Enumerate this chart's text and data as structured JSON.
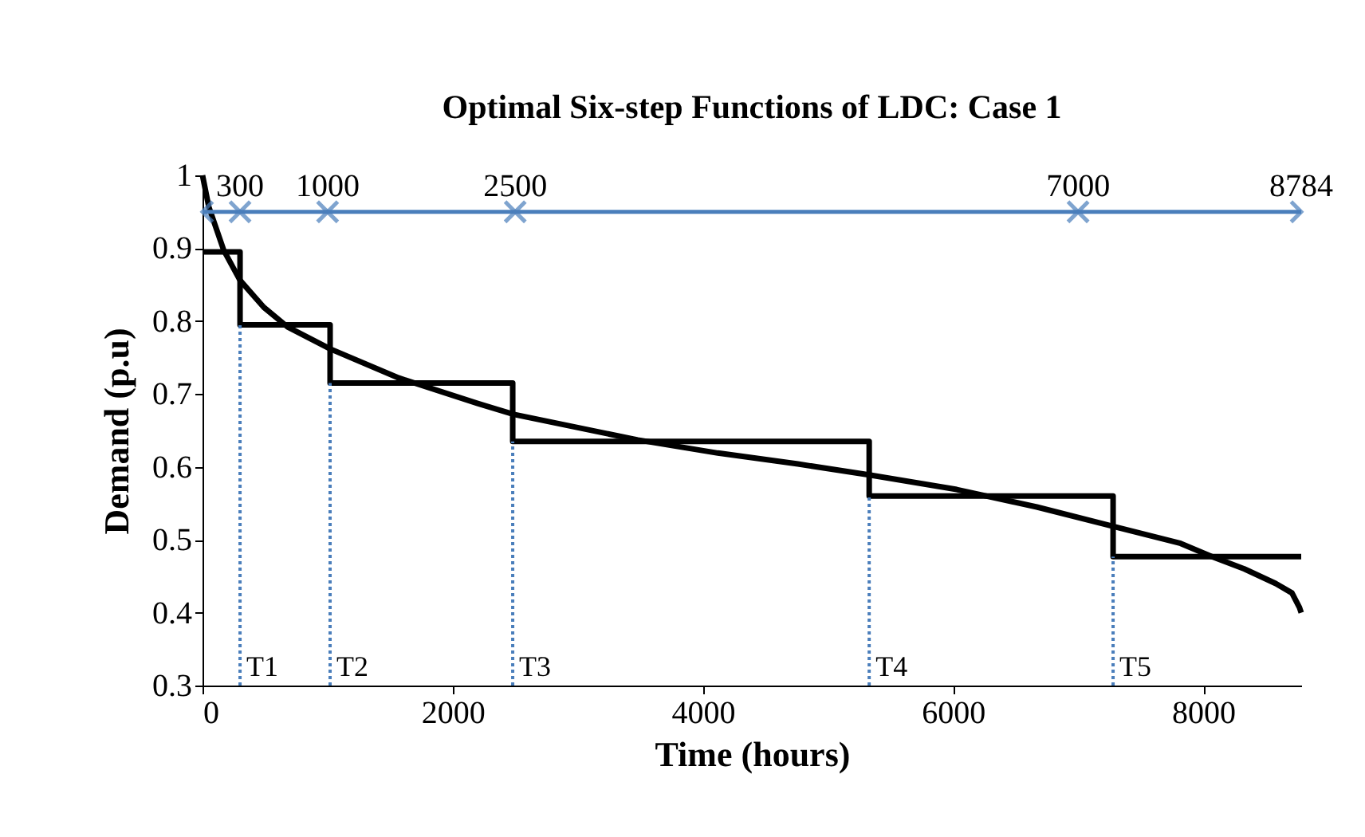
{
  "chart_data": {
    "type": "step",
    "title": "Optimal Six-step Functions of LDC: Case 1",
    "xlabel": "Time (hours)",
    "ylabel": "Demand (p.u)",
    "xlim": [
      0,
      8784
    ],
    "xticks": [
      0,
      2000,
      4000,
      6000,
      8000
    ],
    "ylim": [
      0.3,
      1
    ],
    "yticks": [
      0.3,
      0.4,
      0.5,
      0.6,
      0.7,
      0.8,
      0.9,
      1
    ],
    "grid": false,
    "series": [
      {
        "color": "#000000",
        "x": [
          0,
          300,
          1020,
          2480,
          5330,
          7280,
          8784
        ],
        "values": [
          0.895,
          0.795,
          0.715,
          0.635,
          0.56,
          0.477,
          0.477
        ]
      },
      {
        "type": "line",
        "color": "#000000",
        "x": [
          0,
          50,
          170,
          300,
          490,
          680,
          1020,
          1570,
          2200,
          2490,
          3480,
          4120,
          4760,
          5330,
          6030,
          6670,
          7270,
          7820,
          8070,
          8330,
          8580,
          8710,
          8770,
          8784
        ],
        "values": [
          1.0,
          0.957,
          0.897,
          0.856,
          0.819,
          0.792,
          0.762,
          0.722,
          0.687,
          0.672,
          0.637,
          0.619,
          0.604,
          0.589,
          0.569,
          0.545,
          0.519,
          0.495,
          0.477,
          0.46,
          0.44,
          0.427,
          0.407,
          0.4
        ]
      },
      {
        "type": "line",
        "color": "#4a7ebb",
        "marker": "cross",
        "x": [
          0,
          300,
          1000,
          2500,
          7000,
          8784
        ],
        "values": [
          0.95,
          0.95,
          0.95,
          0.95,
          0.95,
          0.95
        ]
      }
    ],
    "ref_lines": [
      {
        "axis": "x",
        "value": 300,
        "label": "T1",
        "color": "#4a7ebb",
        "line_style": "dotted"
      },
      {
        "axis": "x",
        "value": 1020,
        "label": "T2",
        "color": "#4a7ebb",
        "line_style": "dotted"
      },
      {
        "axis": "x",
        "value": 2480,
        "label": "T3",
        "color": "#4a7ebb",
        "line_style": "dotted"
      },
      {
        "axis": "x",
        "value": 5330,
        "label": "T4",
        "color": "#4a7ebb",
        "line_style": "dotted"
      },
      {
        "axis": "x",
        "value": 7280,
        "label": "T5",
        "color": "#4a7ebb",
        "line_style": "dotted"
      }
    ],
    "annotations": [
      {
        "text": "300",
        "x": 300,
        "y": 0.95
      },
      {
        "text": "1000",
        "x": 1000,
        "y": 0.95
      },
      {
        "text": "2500",
        "x": 2500,
        "y": 0.95
      },
      {
        "text": "7000",
        "x": 7000,
        "y": 0.95
      },
      {
        "text": "8784",
        "x": 8784,
        "y": 0.95
      }
    ]
  }
}
